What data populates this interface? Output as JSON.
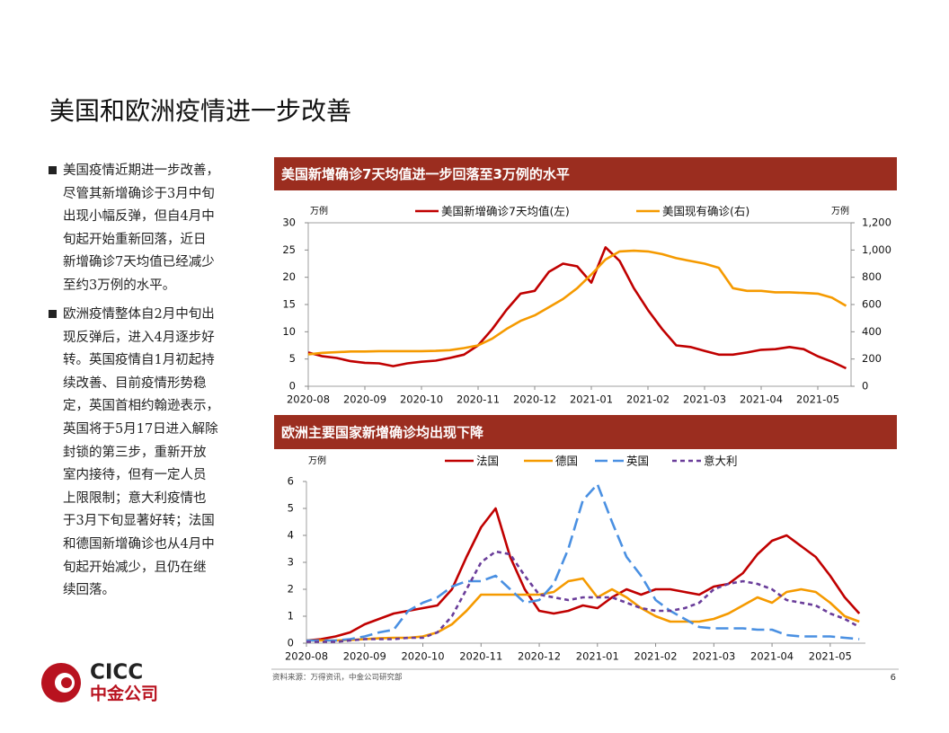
{
  "title": "美国和欧洲疫情进一步改善",
  "bullets": [
    {
      "lines": [
        "美国疫情近期进一步改善，",
        "尽管其新增确诊于3月中旬",
        "出现小幅反弹，但自4月中",
        "旬起开始重新回落，近日",
        "新增确诊7天均值已经减少",
        "至约3万例的水平。"
      ]
    },
    {
      "lines": [
        "欧洲疫情整体自2月中旬出",
        "现反弹后，进入4月逐步好",
        "转。英国疫情自1月初起持",
        "续改善、目前疫情形势稳",
        "定，英国首相约翰逊表示，",
        "英国将于5月17日进入解除",
        "封锁的第三步，重新开放",
        "室内接待，但有一定人员",
        "上限限制；意大利疫情也",
        "于3月下旬显著好转；法国",
        "和德国新增确诊也从4月中",
        "旬起开始减少，且仍在继",
        "续回落。"
      ]
    }
  ],
  "chart_data": [
    {
      "type": "line",
      "title": "美国新增确诊7天均值进一步回落至3万例的水平",
      "ylabel": "万例",
      "y2label": "万例",
      "legend": "top",
      "categories": [
        "2020-08",
        null,
        null,
        null,
        "2020-09",
        null,
        null,
        null,
        "2020-10",
        null,
        null,
        null,
        "2020-11",
        null,
        null,
        null,
        "2020-12",
        null,
        null,
        null,
        "2021-01",
        null,
        null,
        null,
        "2021-02",
        null,
        null,
        null,
        "2021-03",
        null,
        null,
        null,
        "2021-04",
        null,
        null,
        null,
        "2021-05",
        null,
        null
      ],
      "series": [
        {
          "name": "美国新增确诊7天均值(左)",
          "color": "#c00000",
          "style": "solid",
          "values": [
            6.2,
            5.5,
            5.2,
            4.6,
            4.3,
            4.2,
            3.7,
            4.2,
            4.5,
            4.7,
            5.2,
            5.8,
            7.5,
            10.5,
            14,
            17,
            17.5,
            21,
            22.5,
            22,
            19,
            25.5,
            23,
            18,
            14,
            10.5,
            7.5,
            7.2,
            6.5,
            5.8,
            5.8,
            6.2,
            6.7,
            6.8,
            7.2,
            6.8,
            5.5,
            4.5,
            3.3
          ]
        },
        {
          "name": "美国现有确诊(右)",
          "color": "#f59a00",
          "style": "solid",
          "axis": "y2",
          "values": [
            235,
            245,
            250,
            255,
            255,
            258,
            258,
            258,
            258,
            260,
            265,
            280,
            300,
            350,
            420,
            480,
            520,
            580,
            640,
            720,
            820,
            930,
            990,
            995,
            990,
            970,
            940,
            920,
            900,
            870,
            720,
            700,
            700,
            690,
            690,
            685,
            680,
            650,
            590
          ]
        }
      ],
      "ylim": [
        0,
        30
      ],
      "yticks": [
        0,
        5,
        10,
        15,
        20,
        25,
        30
      ],
      "y2lim": [
        0,
        1200
      ],
      "y2ticks": [
        0,
        200,
        400,
        600,
        800,
        {
          "value": 1000,
          "label": "1,000"
        },
        {
          "value": 1200,
          "label": "1,200"
        }
      ]
    },
    {
      "type": "line",
      "title": "欧洲主要国家新增确诊均出现下降",
      "ylabel": "万例",
      "legend": "top",
      "categories": [
        "2020-08",
        null,
        null,
        null,
        "2020-09",
        null,
        null,
        null,
        "2020-10",
        null,
        null,
        null,
        "2020-11",
        null,
        null,
        null,
        "2020-12",
        null,
        null,
        null,
        "2021-01",
        null,
        null,
        null,
        "2021-02",
        null,
        null,
        null,
        "2021-03",
        null,
        null,
        null,
        "2021-04",
        null,
        null,
        null,
        "2021-05",
        null,
        null
      ],
      "series": [
        {
          "name": "法国",
          "color": "#c00000",
          "style": "solid",
          "values": [
            0.1,
            0.15,
            0.25,
            0.4,
            0.7,
            0.9,
            1.1,
            1.2,
            1.3,
            1.4,
            2.0,
            3.2,
            4.3,
            5.0,
            3.2,
            2.0,
            1.2,
            1.1,
            1.2,
            1.4,
            1.3,
            1.7,
            2.0,
            1.8,
            2.0,
            2.0,
            1.9,
            1.8,
            2.1,
            2.2,
            2.6,
            3.3,
            3.8,
            4.0,
            3.6,
            3.2,
            2.5,
            1.7,
            1.1
          ]
        },
        {
          "name": "德国",
          "color": "#f59a00",
          "style": "solid",
          "values": [
            0.1,
            0.1,
            0.1,
            0.12,
            0.15,
            0.18,
            0.2,
            0.2,
            0.25,
            0.4,
            0.7,
            1.2,
            1.8,
            1.8,
            1.8,
            1.8,
            1.8,
            1.9,
            2.3,
            2.4,
            1.7,
            2.0,
            1.7,
            1.3,
            1.0,
            0.8,
            0.8,
            0.8,
            0.9,
            1.1,
            1.4,
            1.7,
            1.5,
            1.9,
            2.0,
            1.9,
            1.5,
            1.0,
            0.8
          ]
        },
        {
          "name": "英国",
          "color": "#4a90e2",
          "style": "dashed",
          "values": [
            0.1,
            0.1,
            0.1,
            0.15,
            0.25,
            0.4,
            0.5,
            1.2,
            1.5,
            1.7,
            2.1,
            2.3,
            2.3,
            2.5,
            2.0,
            1.5,
            1.6,
            2.2,
            3.5,
            5.3,
            5.9,
            4.5,
            3.2,
            2.5,
            1.6,
            1.2,
            0.9,
            0.6,
            0.55,
            0.55,
            0.55,
            0.5,
            0.5,
            0.3,
            0.25,
            0.25,
            0.25,
            0.2,
            0.15
          ]
        },
        {
          "name": "意大利",
          "color": "#6a3d9a",
          "style": "dotted",
          "values": [
            0.05,
            0.05,
            0.05,
            0.1,
            0.15,
            0.15,
            0.15,
            0.2,
            0.2,
            0.4,
            1.0,
            2.0,
            3.0,
            3.4,
            3.3,
            2.5,
            1.8,
            1.7,
            1.6,
            1.7,
            1.7,
            1.7,
            1.5,
            1.3,
            1.2,
            1.2,
            1.3,
            1.5,
            2.0,
            2.2,
            2.3,
            2.2,
            2.0,
            1.6,
            1.5,
            1.4,
            1.1,
            0.9,
            0.6
          ]
        }
      ],
      "ylim": [
        0,
        6
      ],
      "yticks": [
        0,
        1,
        2,
        3,
        4,
        5,
        6
      ]
    }
  ],
  "source": "资料来源：万得资讯，中金公司研究部",
  "page_number": "6",
  "logo": {
    "name": "CICC",
    "name_cn": "中金公司"
  }
}
